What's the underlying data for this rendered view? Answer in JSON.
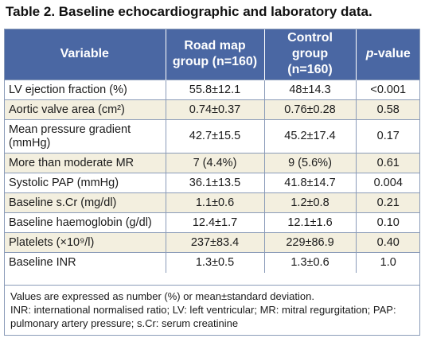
{
  "title": "Table 2. Baseline echocardiographic and laboratory data.",
  "header": {
    "variable": "Variable",
    "road_map_line1": "Road map",
    "road_map_line2": "group (n=160)",
    "control_line1": "Control group",
    "control_line2": "(n=160)",
    "p_italic": "p",
    "p_rest": "-value"
  },
  "rows": [
    {
      "variable": "LV ejection fraction (%)",
      "road_map": "55.8±12.1",
      "control": "48±14.3",
      "p": "<0.001"
    },
    {
      "variable": "Aortic valve area (cm²)",
      "road_map": "0.74±0.37",
      "control": "0.76±0.28",
      "p": "0.58"
    },
    {
      "variable": "Mean pressure gradient (mmHg)",
      "road_map": "42.7±15.5",
      "control": "45.2±17.4",
      "p": "0.17"
    },
    {
      "variable": "More than moderate MR",
      "road_map": "7 (4.4%)",
      "control": "9 (5.6%)",
      "p": "0.61"
    },
    {
      "variable": "Systolic PAP (mmHg)",
      "road_map": "36.1±13.5",
      "control": "41.8±14.7",
      "p": "0.004"
    },
    {
      "variable": "Baseline s.Cr (mg/dl)",
      "road_map": "1.1±0.6",
      "control": "1.2±0.8",
      "p": "0.21"
    },
    {
      "variable": "Baseline haemoglobin (g/dl)",
      "road_map": "12.4±1.7",
      "control": "12.1±1.6",
      "p": "0.10"
    },
    {
      "variable": "Platelets (×10⁹/l)",
      "road_map": "237±83.4",
      "control": "229±86.9",
      "p": "0.40"
    },
    {
      "variable": "Baseline INR",
      "road_map": "1.3±0.5",
      "control": "1.3±0.6",
      "p": "1.0"
    }
  ],
  "footnote": {
    "line1": "Values are expressed as number (%) or mean±standard deviation.",
    "line2": "INR: international normalised ratio; LV: left ventricular; MR: mitral regurgitation; PAP: pulmonary artery pressure; s.Cr: serum creatinine"
  },
  "colors": {
    "header_bg": "#4a67a3",
    "stripe_bg": "#f3efdf",
    "rule": "#8a9bb8"
  }
}
